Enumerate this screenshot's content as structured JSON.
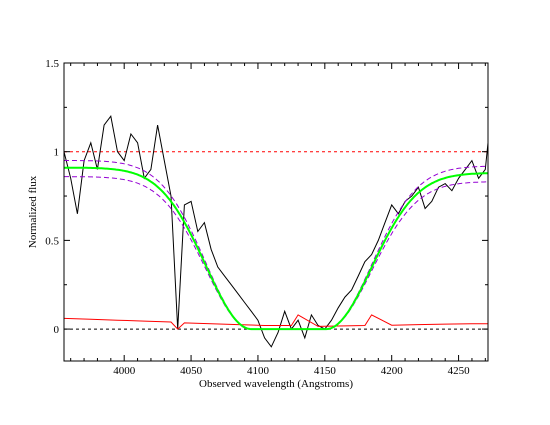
{
  "chart_data": {
    "type": "line",
    "title": "",
    "xlabel": "Observed wavelength (Angstroms)",
    "ylabel": "Normalized flux",
    "xlim": [
      3955,
      4272
    ],
    "ylim": [
      -0.18,
      1.5
    ],
    "x_ticks": [
      4000,
      4050,
      4100,
      4150,
      4200,
      4250
    ],
    "x_tick_labels": [
      "4000",
      "4050",
      "4100",
      "4150",
      "4200",
      "4250"
    ],
    "y_ticks": [
      0,
      0.5,
      1,
      1.5
    ],
    "y_tick_labels": [
      "0",
      "0.5",
      "1",
      "1.5"
    ],
    "grid": false,
    "legend": "none",
    "colors": {
      "spectrum": "#000000",
      "error": "#ff0000",
      "model": "#00ff00",
      "model_bounds": "#9400d3",
      "continuum": "#ff0000",
      "zero_line": "#000000"
    },
    "reference_lines": [
      {
        "y": 1,
        "color": "#ff0000",
        "style": "dashed"
      },
      {
        "y": 0,
        "color": "#000000",
        "style": "dashed"
      }
    ],
    "model_profile": {
      "shape": "absorption trough",
      "center": 4123,
      "flat_bottom_halfwidth": 28,
      "wing_width": 48,
      "edge_flux_left": 0.91,
      "edge_flux_right": 0.88
    },
    "model_bounds": {
      "upper_offset": 0.04,
      "lower_offset": -0.05
    },
    "series": [
      {
        "x": [
          3955,
          3960,
          3965,
          3970,
          3975,
          3980,
          3985,
          3990,
          3995,
          4000,
          4005,
          4010,
          4015,
          4020,
          4025,
          4030,
          4035,
          4040,
          4045,
          4050,
          4055,
          4060,
          4065,
          4070,
          4075,
          4080,
          4085,
          4090,
          4095,
          4100,
          4105,
          4110,
          4115,
          4120,
          4125,
          4130,
          4135,
          4140,
          4145,
          4150,
          4155,
          4160,
          4165,
          4170,
          4175,
          4180,
          4185,
          4190,
          4195,
          4200,
          4205,
          4210,
          4215,
          4220,
          4225,
          4230,
          4235,
          4240,
          4245,
          4250,
          4255,
          4260,
          4265,
          4270,
          4272
        ],
        "y": [
          1.0,
          0.85,
          0.65,
          0.95,
          1.05,
          0.9,
          1.15,
          1.2,
          1.0,
          0.95,
          1.1,
          1.05,
          0.85,
          0.9,
          1.15,
          0.95,
          0.75,
          0.0,
          0.7,
          0.72,
          0.55,
          0.6,
          0.45,
          0.35,
          0.3,
          0.25,
          0.2,
          0.15,
          0.1,
          0.05,
          -0.05,
          -0.1,
          -0.02,
          0.1,
          0.0,
          0.05,
          -0.05,
          0.08,
          0.02,
          0.0,
          0.05,
          0.12,
          0.18,
          0.22,
          0.3,
          0.38,
          0.42,
          0.5,
          0.6,
          0.7,
          0.65,
          0.72,
          0.75,
          0.8,
          0.68,
          0.72,
          0.8,
          0.82,
          0.78,
          0.85,
          0.9,
          0.95,
          0.85,
          0.9,
          1.05
        ]
      },
      {
        "x": [
          3955,
          3975,
          3995,
          4015,
          4035,
          4040,
          4045,
          4065,
          4085,
          4105,
          4125,
          4130,
          4145,
          4165,
          4180,
          4185,
          4200,
          4220,
          4240,
          4260,
          4272
        ],
        "y": [
          0.06,
          0.055,
          0.05,
          0.045,
          0.04,
          0.0,
          0.035,
          0.03,
          0.025,
          0.02,
          0.02,
          0.08,
          0.015,
          0.018,
          0.02,
          0.08,
          0.022,
          0.025,
          0.028,
          0.03,
          0.03
        ]
      }
    ]
  }
}
